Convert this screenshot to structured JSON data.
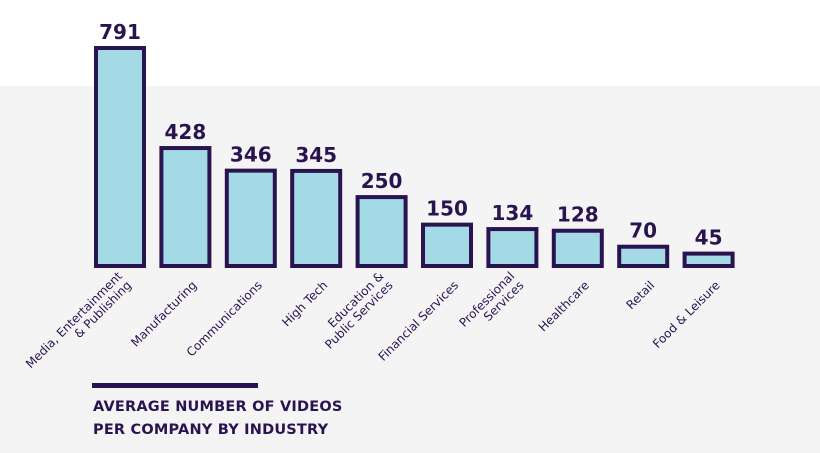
{
  "colors": {
    "bar_fill": "#a4dae5",
    "bar_stroke": "#2a1450",
    "text": "#2a1450",
    "background_band": "#f4f4f4"
  },
  "chart_data": {
    "type": "bar",
    "categories": [
      [
        "Media, Entertainment",
        "& Publishing"
      ],
      [
        "Manufacturing"
      ],
      [
        "Communications"
      ],
      [
        "High Tech"
      ],
      [
        "Education &",
        "Public Services"
      ],
      [
        "Financial Services"
      ],
      [
        "Professional",
        "Services"
      ],
      [
        "Healthcare"
      ],
      [
        "Retail"
      ],
      [
        "Food & Leisure"
      ]
    ],
    "values": [
      791,
      428,
      346,
      345,
      250,
      150,
      134,
      128,
      70,
      45
    ],
    "title_lines": [
      "AVERAGE NUMBER OF VIDEOS",
      "PER COMPANY BY INDUSTRY"
    ],
    "xlabel": "",
    "ylabel": "",
    "ylim": [
      0,
      791
    ],
    "grid": false,
    "legend": "none",
    "data_labels": true
  }
}
